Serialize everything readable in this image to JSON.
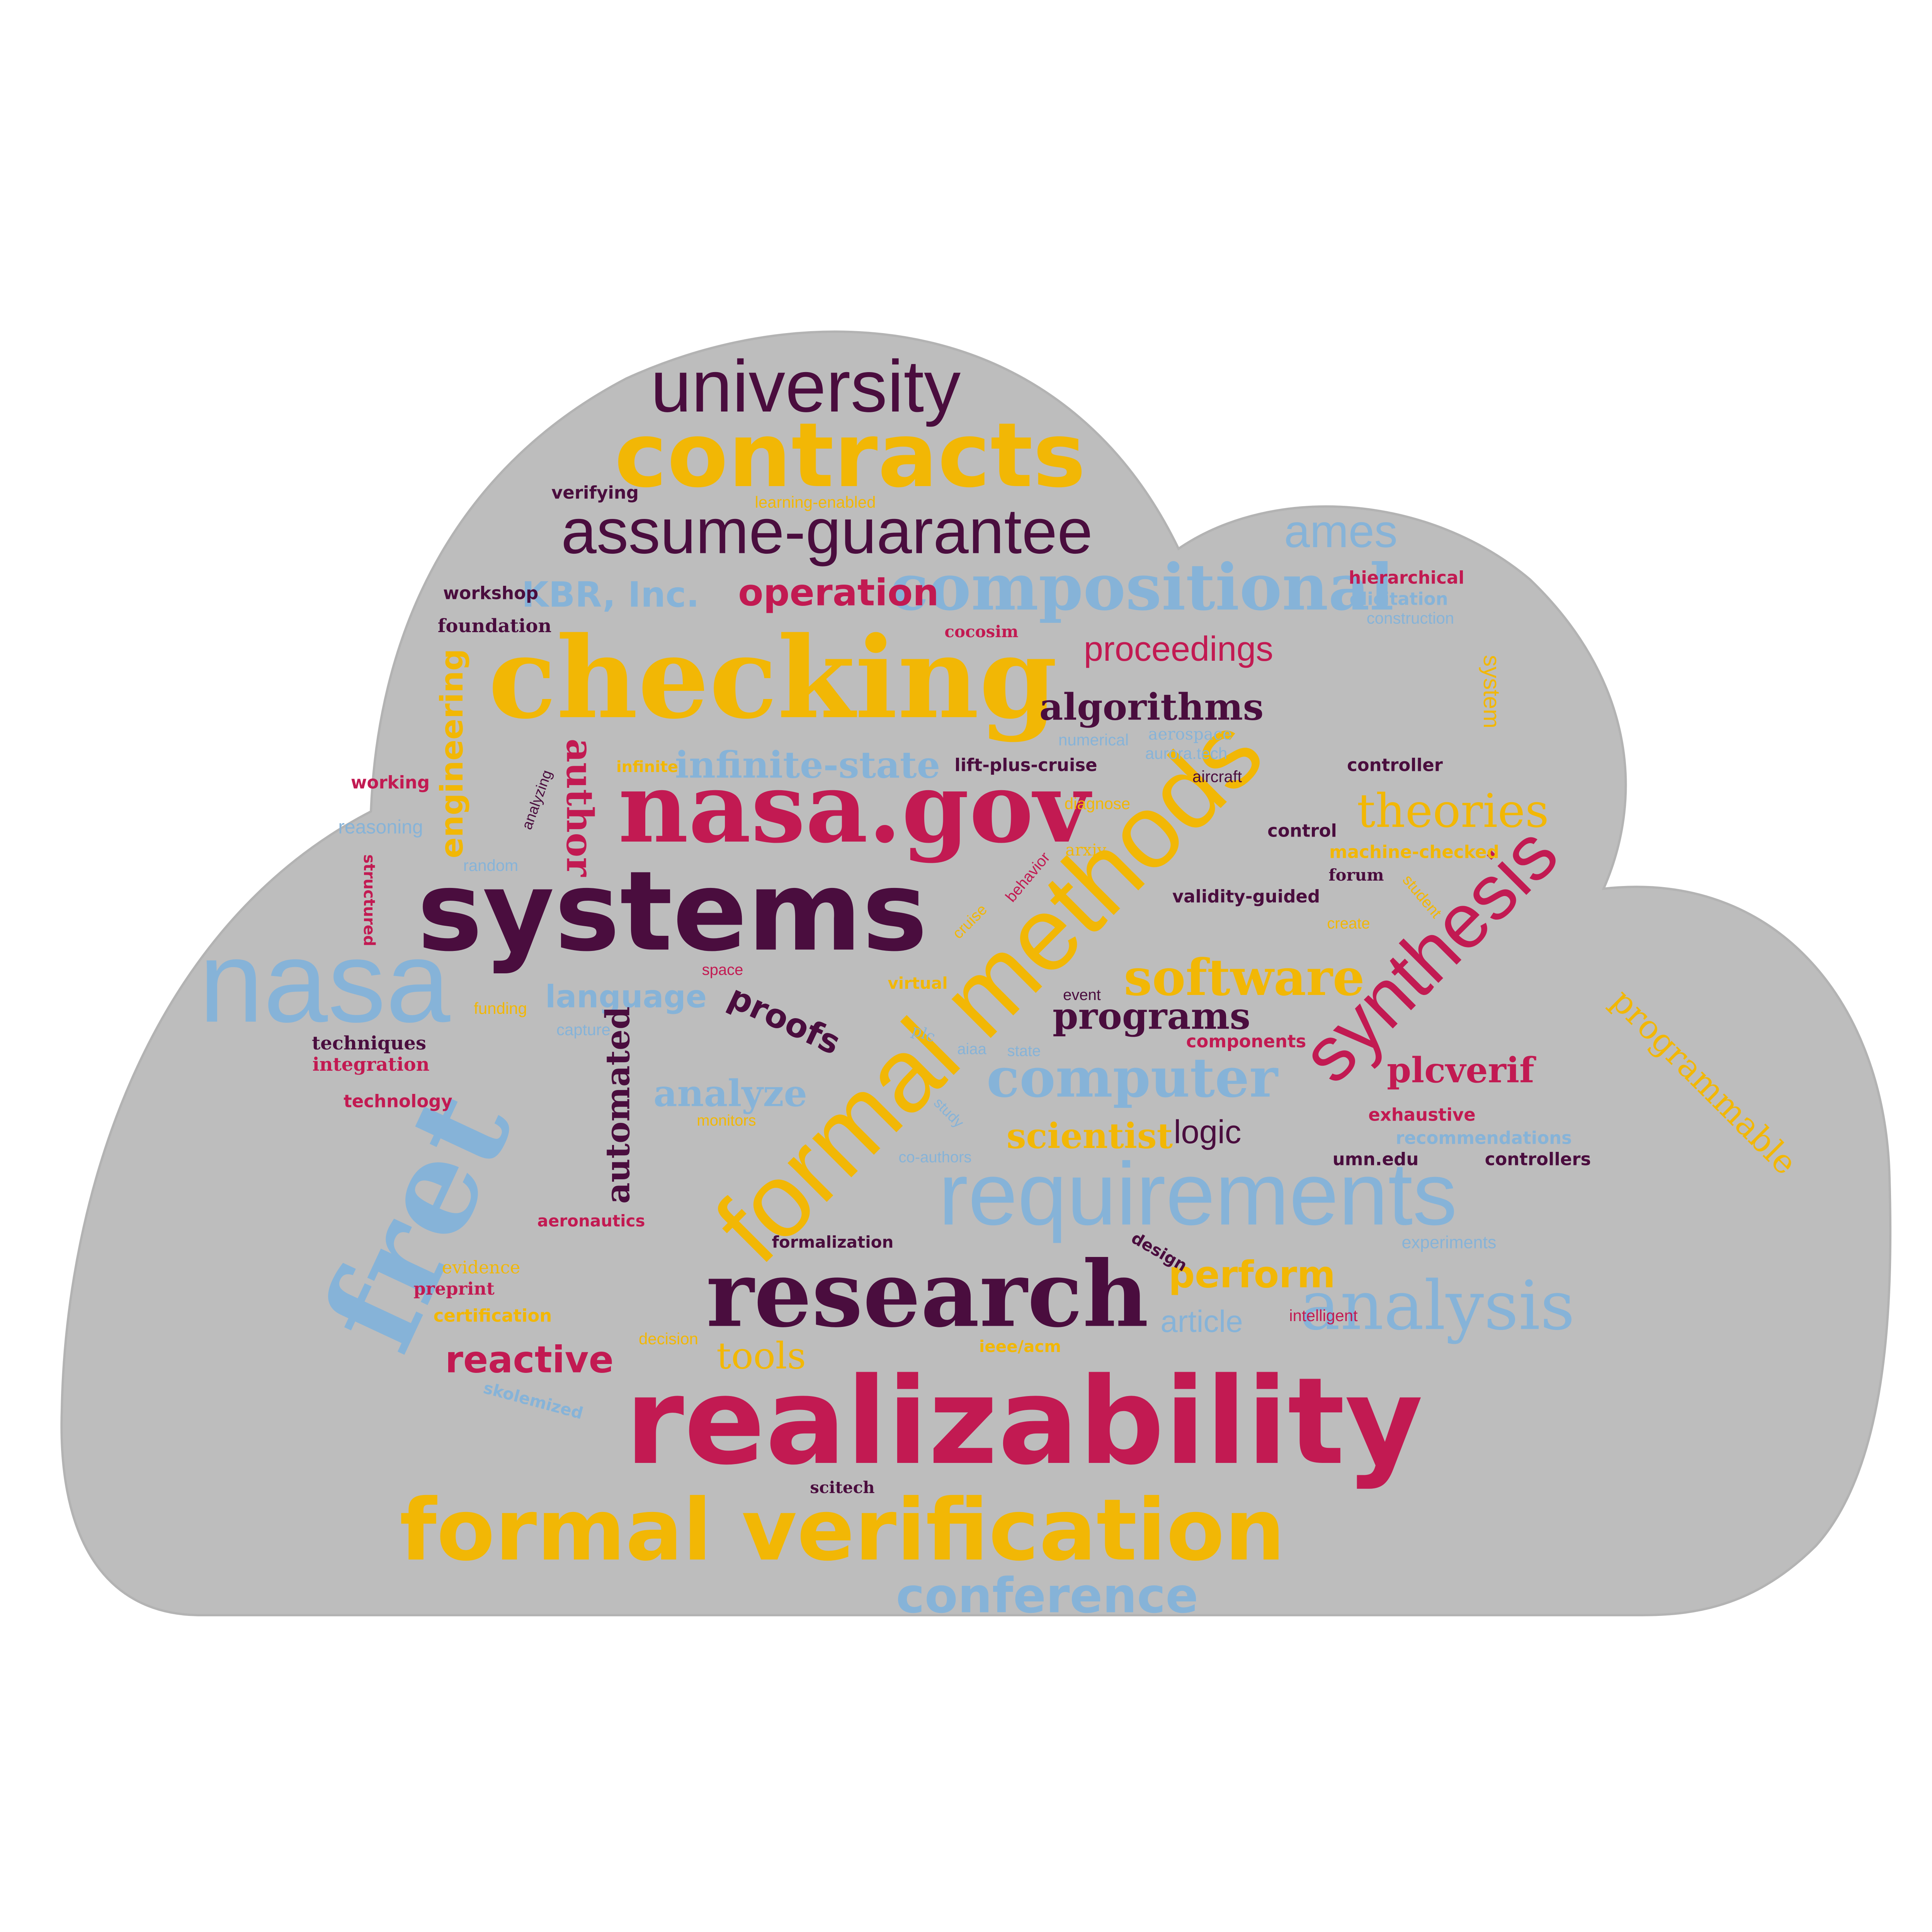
{
  "colors": {
    "background": "#ffffff",
    "cloud_fill": "#bdbdbd",
    "purple": "#4a0d3e",
    "yellow": "#f2b705",
    "crimson": "#c21a52",
    "blue": "#86b3d8"
  },
  "words": {
    "w01": "university",
    "w02": "contracts",
    "w03": "verifying",
    "w04": "learning-enabled",
    "w05": "assume-guarantee",
    "w06": "ames",
    "w07": "workshop",
    "w08": "KBR, Inc.",
    "w09": "operation",
    "w10": "compositional",
    "w11": "hierarchical",
    "w12": "elicitation",
    "w13": "construction",
    "w14": "foundation",
    "w15": "cocosim",
    "w16": "proceedings",
    "w17": "checking",
    "w18": "engineering",
    "w19": "system",
    "w20": "algorithms",
    "w21": "numerical",
    "w22": "aerospace",
    "w23": "infinite",
    "w24": "infinite-state",
    "w25": "lift-plus-cruise",
    "w26": "aurora.tech",
    "w27": "controller",
    "w28": "working",
    "w29": "author",
    "w30": "aircraft",
    "w31": "analyzing",
    "w32": "nasa.gov",
    "w33": "diagnose",
    "w34": "theories",
    "w35": "reasoning",
    "w36": "control",
    "w37": "random",
    "w38": "arxiv",
    "w39": "machine-checked",
    "w40": "structured",
    "w41": "formal methods",
    "w42": "forum",
    "w43": "systems",
    "w44": "behavior",
    "w45": "student",
    "w46": "validity-guided",
    "w47": "cruise",
    "w48": "create",
    "w49": "synthesis",
    "w50": "nasa",
    "w51": "space",
    "w52": "software",
    "w53": "virtual",
    "w54": "language",
    "w55": "event",
    "w56": "funding",
    "w57": "proofs",
    "w58": "programs",
    "w59": "capture",
    "w60": "techniques",
    "w61": "plc",
    "w62": "components",
    "w63": "programmable",
    "w64": "integration",
    "w65": "aiaa",
    "w66": "state",
    "w67": "computer",
    "w68": "plcverif",
    "w69": "fret",
    "w70": "analyze",
    "w71": "technology",
    "w72": "automated",
    "w73": "study",
    "w74": "monitors",
    "w75": "scientist",
    "w76": "logic",
    "w77": "exhaustive",
    "w78": "recommendations",
    "w79": "co-authors",
    "w80": "umn.edu",
    "w81": "controllers",
    "w82": "requirements",
    "w83": "aeronautics",
    "w84": "formalization",
    "w85": "experiments",
    "w86": "design",
    "w87": "evidence",
    "w88": "perform",
    "w89": "preprint",
    "w90": "research",
    "w91": "analysis",
    "w92": "certification",
    "w93": "article",
    "w94": "intelligent",
    "w95": "reactive",
    "w96": "decision",
    "w97": "tools",
    "w98": "ieee/acm",
    "w99": "skolemized",
    "w100": "realizability",
    "w101": "scitech",
    "w102": "formal verification",
    "w103": "conference"
  }
}
